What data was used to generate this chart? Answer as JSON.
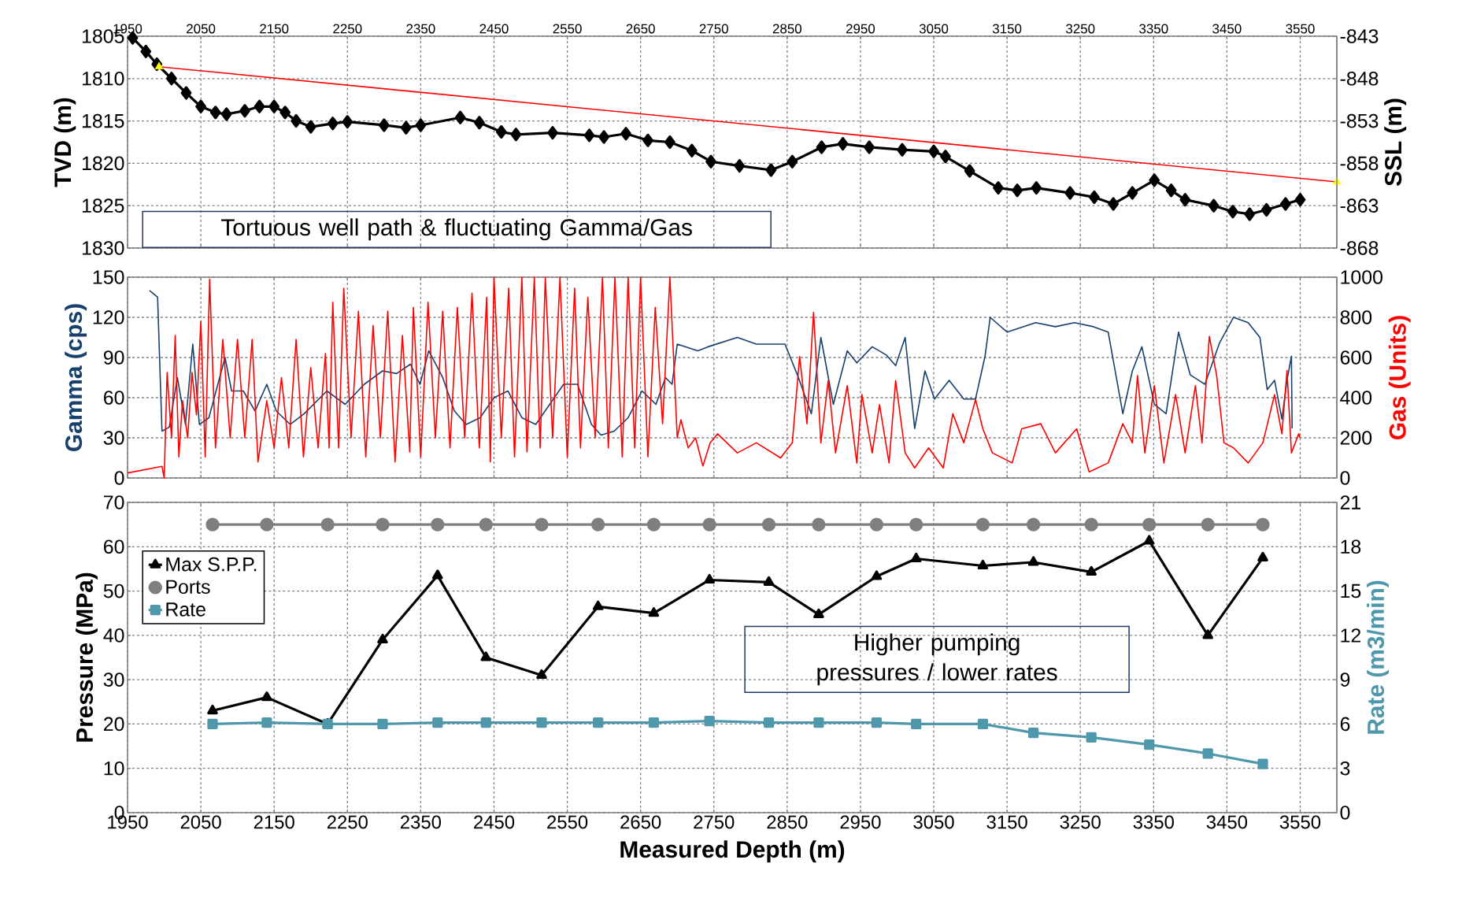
{
  "chart_data": [
    {
      "type": "line",
      "ylabel": "TVD (m)",
      "y2label": "SSL (m)",
      "annotations": [
        "Tortuous well path & fluctuating Gamma/Gas"
      ],
      "grid": true,
      "xlim": [
        1950,
        3600
      ],
      "xticks": [
        1950,
        2050,
        2150,
        2250,
        2350,
        2450,
        2550,
        2650,
        2750,
        2850,
        2950,
        3050,
        3150,
        3250,
        3350,
        3450,
        3550
      ],
      "ylim": [
        1830,
        1805
      ],
      "yticks": [
        1805,
        1810,
        1815,
        1820,
        1825,
        1830
      ],
      "y2lim": [
        -868,
        -843
      ],
      "y2ticks": [
        -843,
        -848,
        -853,
        -858,
        -863,
        -868
      ],
      "series": [
        {
          "color": "#000000",
          "marker": "diamond",
          "x": [
            1957,
            1975,
            1990,
            2010,
            2030,
            2050,
            2070,
            2085,
            2110,
            2130,
            2150,
            2165,
            2180,
            2200,
            2230,
            2250,
            2300,
            2330,
            2350,
            2404,
            2430,
            2460,
            2480,
            2530,
            2580,
            2600,
            2630,
            2660,
            2690,
            2720,
            2746,
            2785,
            2828,
            2857,
            2897,
            2926,
            2962,
            3007,
            3050,
            3066,
            3099,
            3138,
            3164,
            3190,
            3236,
            3269,
            3295,
            3321,
            3351,
            3374,
            3393,
            3432,
            3458,
            3481,
            3504,
            3530,
            3550
          ],
          "values": [
            1805.2,
            1806.8,
            1808.3,
            1810,
            1811.7,
            1813.3,
            1814,
            1814.2,
            1813.8,
            1813.3,
            1813.3,
            1814,
            1815,
            1815.7,
            1815.3,
            1815.1,
            1815.5,
            1815.8,
            1815.5,
            1814.6,
            1815.2,
            1816.3,
            1816.6,
            1816.4,
            1816.7,
            1816.9,
            1816.5,
            1817.3,
            1817.5,
            1818.5,
            1819.8,
            1820.3,
            1820.8,
            1819.8,
            1818.1,
            1817.7,
            1818.1,
            1818.4,
            1818.6,
            1819.2,
            1820.9,
            1822.9,
            1823.2,
            1822.9,
            1823.5,
            1824,
            1824.8,
            1823.5,
            1822,
            1823.2,
            1824.3,
            1825,
            1825.7,
            1826,
            1825.5,
            1824.8,
            1824.3
          ]
        },
        {
          "color": "#ff0000",
          "x": [
            1993,
            3600
          ],
          "values": [
            1808.6,
            1822.2
          ]
        },
        {
          "type": "scatter",
          "color": "#ffff00",
          "marker": "triangle",
          "x": [
            1993,
            3600
          ],
          "values": [
            1808.6,
            1822.2
          ]
        }
      ]
    },
    {
      "type": "line",
      "ylabel": "Gamma (cps)",
      "y2label": "Gas (Units)",
      "grid": true,
      "tick_labels": "y",
      "xlim": [
        1950,
        3600
      ],
      "xticks": [
        1950,
        2050,
        2150,
        2250,
        2350,
        2450,
        2550,
        2650,
        2750,
        2850,
        2950,
        3050,
        3150,
        3250,
        3350,
        3450,
        3550
      ],
      "ylim": [
        0,
        150
      ],
      "yticks": [
        0,
        30,
        60,
        90,
        120,
        150
      ],
      "y2lim": [
        0,
        1000
      ],
      "y2ticks": [
        0,
        200,
        400,
        600,
        800,
        1000
      ],
      "series": [
        {
          "color": "#17406d",
          "x": [
            1980,
            1991,
            1997,
            2007,
            2018,
            2029,
            2039,
            2048,
            2061,
            2083,
            2092,
            2108,
            2124,
            2140,
            2153,
            2172,
            2191,
            2222,
            2247,
            2273,
            2298,
            2317,
            2336,
            2349,
            2361,
            2380,
            2396,
            2412,
            2431,
            2450,
            2469,
            2488,
            2507,
            2526,
            2545,
            2564,
            2583,
            2596,
            2614,
            2633,
            2652,
            2671,
            2684,
            2693,
            2700,
            2728,
            2742,
            2782,
            2808,
            2847,
            2864,
            2883,
            2896,
            2913,
            2932,
            2945,
            2966,
            2985,
            2998,
            3011,
            3024,
            3038,
            3051,
            3071,
            3091,
            3107,
            3120,
            3127,
            3150,
            3189,
            3216,
            3242,
            3268,
            3288,
            3308,
            3321,
            3334,
            3351,
            3367,
            3384,
            3400,
            3420,
            3440,
            3459,
            3479,
            3495,
            3505,
            3515,
            3525,
            3532,
            3538,
            3539
          ],
          "values": [
            140,
            135,
            35,
            38,
            75,
            40,
            100,
            40,
            45,
            90,
            65,
            65,
            50,
            70,
            50,
            40,
            48,
            65,
            55,
            70,
            80,
            78,
            85,
            70,
            95,
            75,
            50,
            40,
            45,
            60,
            65,
            45,
            40,
            55,
            70,
            70,
            40,
            32,
            35,
            45,
            65,
            55,
            75,
            70,
            100,
            95,
            98,
            105,
            100,
            100,
            77,
            48,
            105,
            55,
            95,
            86,
            98,
            92,
            84,
            105,
            37,
            80,
            59,
            73,
            59,
            59,
            91,
            120,
            109,
            116,
            113,
            116,
            113,
            109,
            48,
            80,
            98,
            55,
            48,
            109,
            77,
            70,
            101,
            120,
            116,
            105,
            66,
            73,
            44,
            73,
            91,
            37
          ]
        },
        {
          "color": "#ff0000",
          "axis": "y2",
          "x": [
            1950,
            1997,
            2000,
            2004,
            2010,
            2015,
            2020,
            2025,
            2032,
            2038,
            2044,
            2050,
            2056,
            2062,
            2070,
            2080,
            2090,
            2100,
            2110,
            2120,
            2128,
            2140,
            2150,
            2160,
            2170,
            2180,
            2190,
            2200,
            2210,
            2220,
            2225,
            2230,
            2238,
            2245,
            2255,
            2265,
            2275,
            2285,
            2295,
            2305,
            2315,
            2325,
            2335,
            2340,
            2350,
            2360,
            2370,
            2380,
            2390,
            2400,
            2410,
            2420,
            2430,
            2440,
            2445,
            2450,
            2460,
            2470,
            2478,
            2488,
            2495,
            2505,
            2513,
            2520,
            2530,
            2540,
            2550,
            2560,
            2568,
            2578,
            2588,
            2598,
            2606,
            2615,
            2625,
            2633,
            2642,
            2650,
            2660,
            2670,
            2680,
            2690,
            2700,
            2705,
            2715,
            2725,
            2735,
            2745,
            2755,
            2782,
            2808,
            2841,
            2857,
            2867,
            2877,
            2886,
            2896,
            2906,
            2916,
            2932,
            2945,
            2952,
            2966,
            2976,
            2989,
            2998,
            3011,
            3024,
            3043,
            3063,
            3076,
            3091,
            3107,
            3117,
            3130,
            3157,
            3170,
            3196,
            3216,
            3245,
            3262,
            3288,
            3308,
            3321,
            3328,
            3338,
            3351,
            3364,
            3380,
            3393,
            3407,
            3416,
            3426,
            3436,
            3446,
            3459,
            3479,
            3499,
            3515,
            3525,
            3532,
            3538,
            3548,
            3550
          ],
          "values": [
            25,
            58,
            0,
            525,
            200,
            710,
            105,
            385,
            200,
            525,
            315,
            780,
            105,
            990,
            150,
            690,
            200,
            690,
            200,
            690,
            80,
            385,
            150,
            500,
            150,
            690,
            105,
            550,
            150,
            620,
            150,
            875,
            150,
            945,
            200,
            830,
            105,
            760,
            200,
            830,
            80,
            710,
            130,
            850,
            105,
            875,
            200,
            830,
            150,
            850,
            200,
            920,
            150,
            900,
            80,
            1000,
            200,
            945,
            105,
            1000,
            130,
            1000,
            150,
            1000,
            200,
            1000,
            105,
            945,
            150,
            900,
            200,
            1000,
            150,
            1000,
            105,
            1000,
            150,
            1000,
            105,
            850,
            270,
            1000,
            200,
            290,
            150,
            200,
            60,
            175,
            220,
            125,
            175,
            100,
            175,
            605,
            270,
            825,
            175,
            485,
            125,
            460,
            75,
            415,
            125,
            365,
            75,
            485,
            125,
            50,
            150,
            50,
            320,
            175,
            390,
            245,
            125,
            75,
            245,
            270,
            125,
            245,
            30,
            75,
            270,
            175,
            510,
            125,
            460,
            75,
            415,
            125,
            460,
            175,
            705,
            510,
            175,
            150,
            75,
            175,
            415,
            220,
            535,
            125,
            220,
            200
          ]
        }
      ]
    },
    {
      "type": "line",
      "xlabel": "Measured Depth (m)",
      "ylabel": "Pressure (MPa)",
      "y2label": "Rate (m3/min)",
      "annotations": [
        "Higher pumping pressures / lower rates"
      ],
      "grid": true,
      "legend": "top left",
      "xlim": [
        1950,
        3600
      ],
      "xticks": [
        1950,
        2050,
        2150,
        2250,
        2350,
        2450,
        2550,
        2650,
        2750,
        2850,
        2950,
        3050,
        3150,
        3250,
        3350,
        3450,
        3550
      ],
      "ylim": [
        0,
        70
      ],
      "yticks": [
        0,
        10,
        20,
        30,
        40,
        50,
        60,
        70
      ],
      "y2lim": [
        0,
        21
      ],
      "y2ticks": [
        0,
        3,
        6,
        9,
        12,
        15,
        18,
        21
      ],
      "x": [
        2066,
        2140,
        2223,
        2298,
        2373,
        2439,
        2515,
        2592,
        2668,
        2744,
        2825,
        2893,
        2972,
        3026,
        3117,
        3186,
        3265,
        3344,
        3424,
        3499
      ],
      "series": [
        {
          "name": "Max S.P.P.",
          "color": "#000000",
          "marker": "triangle",
          "values": [
            23,
            26,
            20,
            39,
            53.5,
            35,
            31,
            46.5,
            45,
            52.5,
            52,
            44.7,
            53.3,
            57.3,
            55.7,
            56.5,
            54.3,
            61.3,
            40,
            57.5
          ]
        },
        {
          "name": "Ports",
          "color": "#7f7f7f",
          "marker": "circle",
          "values": [
            65,
            65,
            65,
            65,
            65,
            65,
            65,
            65,
            65,
            65,
            65,
            65,
            65,
            65,
            65,
            65,
            65,
            65,
            65,
            65
          ]
        },
        {
          "name": "Rate",
          "color": "#4f98ab",
          "marker": "square",
          "axis": "y2",
          "values": [
            6,
            6.1,
            6,
            6,
            6.1,
            6.1,
            6.1,
            6.1,
            6.1,
            6.2,
            6.1,
            6.1,
            6.1,
            6.0,
            6.0,
            5.4,
            5.1,
            4.6,
            4.0,
            3.3
          ]
        }
      ]
    }
  ]
}
